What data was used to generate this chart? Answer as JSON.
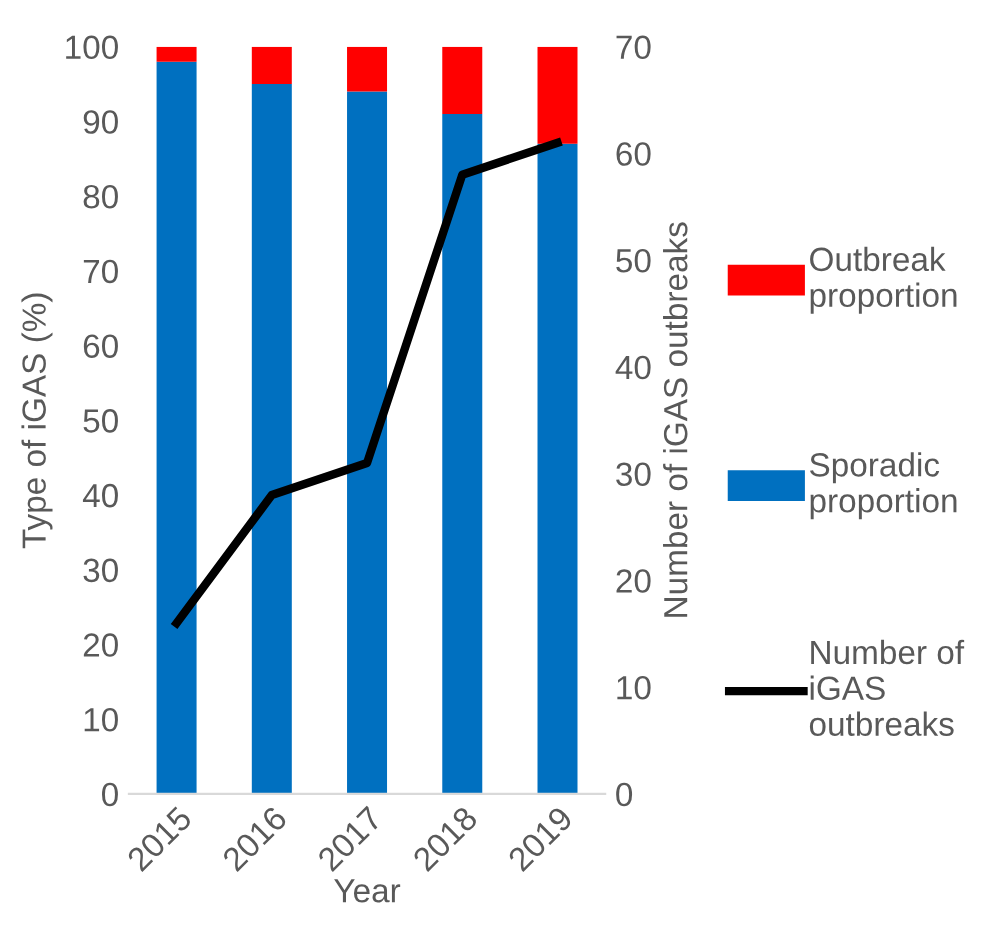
{
  "chart_data": {
    "type": "bar",
    "stacked": true,
    "xlabel": "Year",
    "ylabel": "Type of iGAS (%)",
    "y2label": "Number of iGAS outbreaks",
    "categories": [
      "2015",
      "2016",
      "2017",
      "2018",
      "2019"
    ],
    "series": [
      {
        "name": "Sporadic proportion",
        "color": "#0070c0",
        "values": [
          98,
          95,
          94,
          91,
          87
        ]
      },
      {
        "name": "Outbreak proportion",
        "color": "#ff0000",
        "values": [
          2,
          5,
          6,
          9,
          13
        ]
      },
      {
        "name": "Number of iGAS outbreaks",
        "type": "line",
        "axis": "y2",
        "color": "#000000",
        "values": [
          16,
          28,
          31,
          58,
          61
        ]
      }
    ],
    "ylim": [
      0,
      100
    ],
    "yticks": [
      0,
      10,
      20,
      30,
      40,
      50,
      60,
      70,
      80,
      90,
      100
    ],
    "y2lim": [
      0,
      70
    ],
    "y2ticks": [
      0,
      10,
      20,
      30,
      40,
      50,
      60,
      70
    ],
    "grid": false,
    "legend": "right",
    "marker": "none",
    "line_style": "solid"
  }
}
